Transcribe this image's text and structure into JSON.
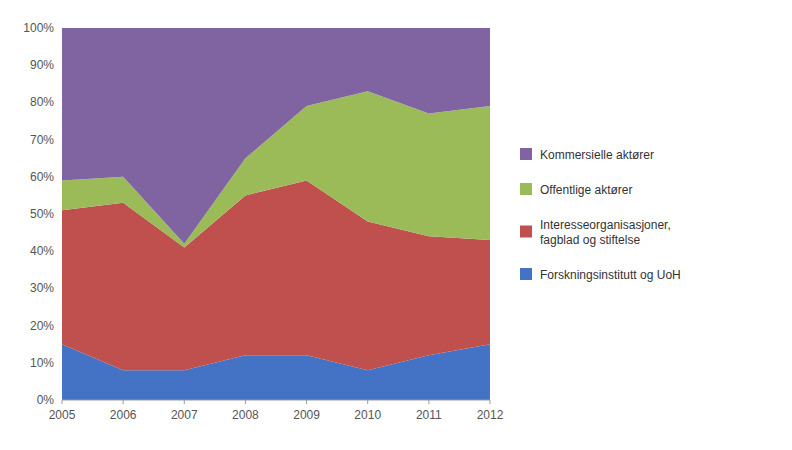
{
  "chart_data": {
    "type": "area",
    "stacked": true,
    "x": [
      2005,
      2006,
      2007,
      2008,
      2009,
      2010,
      2011,
      2012
    ],
    "xlim": [
      2005,
      2012
    ],
    "xticks": [
      2005,
      2006,
      2007,
      2008,
      2009,
      2010,
      2011,
      2012
    ],
    "series": [
      {
        "name": "Forskningsinstitutt og UoH",
        "color": "#4472C4",
        "values": [
          15,
          8,
          8,
          12,
          12,
          8,
          12,
          15
        ]
      },
      {
        "name": "Interesseorganisasjoner,\nfagblad og stiftelse",
        "color": "#C0504D",
        "values": [
          36,
          45,
          33,
          43,
          47,
          40,
          32,
          28
        ]
      },
      {
        "name": "Offentlige aktører",
        "color": "#9BBB59",
        "values": [
          8,
          7,
          1,
          10,
          20,
          35,
          33,
          36
        ]
      },
      {
        "name": "Kommersielle aktører",
        "color": "#8064A2",
        "values": [
          41,
          40,
          58,
          35,
          21,
          17,
          23,
          21
        ]
      }
    ],
    "ylim": [
      0,
      100
    ],
    "yticks": [
      {
        "value": 0,
        "label": "0%"
      },
      {
        "value": 10,
        "label": "10%"
      },
      {
        "value": 20,
        "label": "20%"
      },
      {
        "value": 30,
        "label": "30%"
      },
      {
        "value": 40,
        "label": "40%"
      },
      {
        "value": 50,
        "label": "50%"
      },
      {
        "value": 60,
        "label": "60%"
      },
      {
        "value": 70,
        "label": "70%"
      },
      {
        "value": 80,
        "label": "80%"
      },
      {
        "value": 90,
        "label": "90%"
      },
      {
        "value": 100,
        "label": "100%"
      }
    ],
    "grid": false,
    "legend": "right"
  }
}
